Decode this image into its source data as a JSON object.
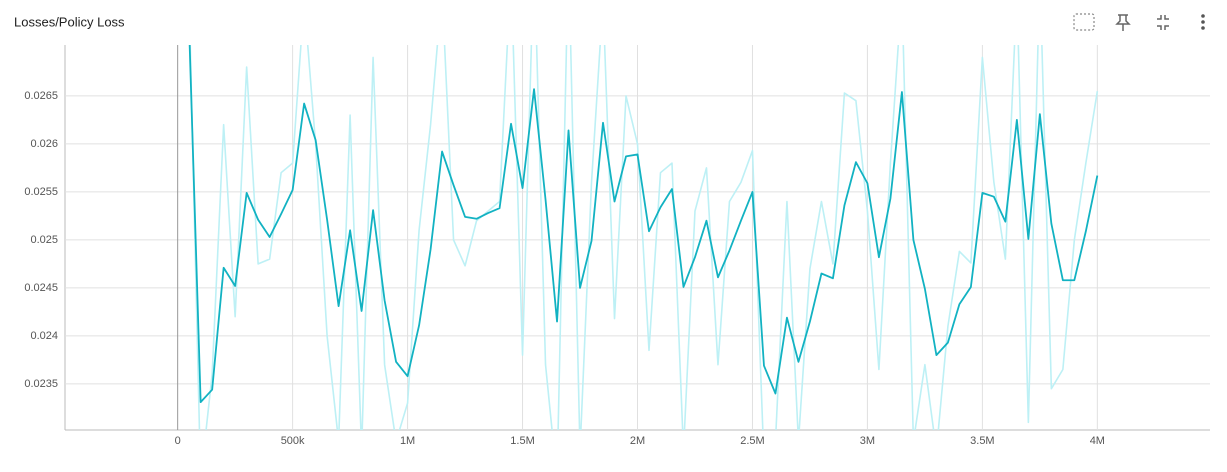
{
  "chart_data": {
    "type": "line",
    "title": "Losses/Policy Loss",
    "x": [
      50000,
      100000,
      150000,
      200000,
      250000,
      300000,
      350000,
      400000,
      450000,
      500000,
      550000,
      600000,
      650000,
      700000,
      750000,
      800000,
      850000,
      900000,
      950000,
      1000000,
      1050000,
      1100000,
      1150000,
      1200000,
      1250000,
      1300000,
      1350000,
      1400000,
      1450000,
      1500000,
      1550000,
      1600000,
      1650000,
      1700000,
      1750000,
      1800000,
      1850000,
      1900000,
      1950000,
      2000000,
      2050000,
      2100000,
      2150000,
      2200000,
      2250000,
      2300000,
      2350000,
      2400000,
      2450000,
      2500000,
      2550000,
      2600000,
      2650000,
      2700000,
      2750000,
      2800000,
      2850000,
      2900000,
      2950000,
      3000000,
      3050000,
      3100000,
      3150000,
      3200000,
      3250000,
      3300000,
      3350000,
      3400000,
      3450000,
      3500000,
      3550000,
      3600000,
      3650000,
      3700000,
      3750000,
      3800000,
      3850000,
      3900000,
      3950000,
      4000000
    ],
    "series": [
      {
        "color": "#bdf0f5",
        "values": [
          0.0275,
          0.0225,
          0.0236,
          0.0262,
          0.0242,
          0.0268,
          0.02475,
          0.0248,
          0.0257,
          0.0258,
          0.0275,
          0.026,
          0.024,
          0.0229,
          0.0263,
          0.0228,
          0.0269,
          0.0237,
          0.0229,
          0.0233,
          0.0251,
          0.0262,
          0.0276,
          0.025,
          0.02473,
          0.0252,
          0.0253,
          0.0254,
          0.0278,
          0.0238,
          0.028,
          0.0237,
          0.0225,
          0.028,
          0.0228,
          0.0256,
          0.0275,
          0.02418,
          0.0265,
          0.026,
          0.02385,
          0.0257,
          0.0258,
          0.0228,
          0.0253,
          0.02575,
          0.0237,
          0.0254,
          0.0256,
          0.02593,
          0.0227,
          0.0229,
          0.0254,
          0.0229,
          0.0247,
          0.0254,
          0.02475,
          0.02653,
          0.02645,
          0.0253,
          0.02365,
          0.0258,
          0.0276,
          0.0229,
          0.0237,
          0.0228,
          0.0241,
          0.02488,
          0.02476,
          0.0269,
          0.0256,
          0.0248,
          0.0276,
          0.0231,
          0.0278,
          0.02345,
          0.02365,
          0.025,
          0.0258,
          0.02655
        ]
      },
      {
        "color": "#12b2c2",
        "values": [
          0.0272,
          0.02331,
          0.02344,
          0.02471,
          0.02452,
          0.02549,
          0.02521,
          0.02503,
          0.02527,
          0.02552,
          0.02642,
          0.02604,
          0.02521,
          0.02431,
          0.0251,
          0.02426,
          0.02531,
          0.02437,
          0.02373,
          0.02358,
          0.02411,
          0.0249,
          0.02592,
          0.02557,
          0.02524,
          0.02522,
          0.02528,
          0.02533,
          0.02621,
          0.02554,
          0.02657,
          0.02542,
          0.02415,
          0.02614,
          0.0245,
          0.02499,
          0.02622,
          0.0254,
          0.02587,
          0.02589,
          0.02509,
          0.02534,
          0.02553,
          0.02451,
          0.02482,
          0.0252,
          0.02461,
          0.02489,
          0.0252,
          0.0255,
          0.02369,
          0.0234,
          0.02419,
          0.02373,
          0.02415,
          0.02465,
          0.0246,
          0.02536,
          0.02581,
          0.02559,
          0.02482,
          0.02543,
          0.02654,
          0.025,
          0.02449,
          0.0238,
          0.02393,
          0.02433,
          0.02451,
          0.02549,
          0.02545,
          0.02519,
          0.02625,
          0.02501,
          0.02631,
          0.02517,
          0.02458,
          0.02458,
          0.02509,
          0.02567
        ]
      }
    ],
    "xlim": [
      -490000,
      4490000
    ],
    "xticks": [
      0,
      {
        "value": 500000,
        "label": "500k"
      },
      {
        "value": 1000000,
        "label": "1M"
      },
      {
        "value": 1500000,
        "label": "1.5M"
      },
      {
        "value": 2000000,
        "label": "2M"
      },
      {
        "value": 2500000,
        "label": "2.5M"
      },
      {
        "value": 3000000,
        "label": "3M"
      },
      {
        "value": 3500000,
        "label": "3.5M"
      },
      {
        "value": 4000000,
        "label": "4M"
      }
    ],
    "ylim": [
      0.02302,
      0.02703
    ],
    "yticks": [
      0.0235,
      0.024,
      0.0245,
      0.025,
      0.0255,
      0.026,
      0.0265
    ],
    "grid": true
  }
}
